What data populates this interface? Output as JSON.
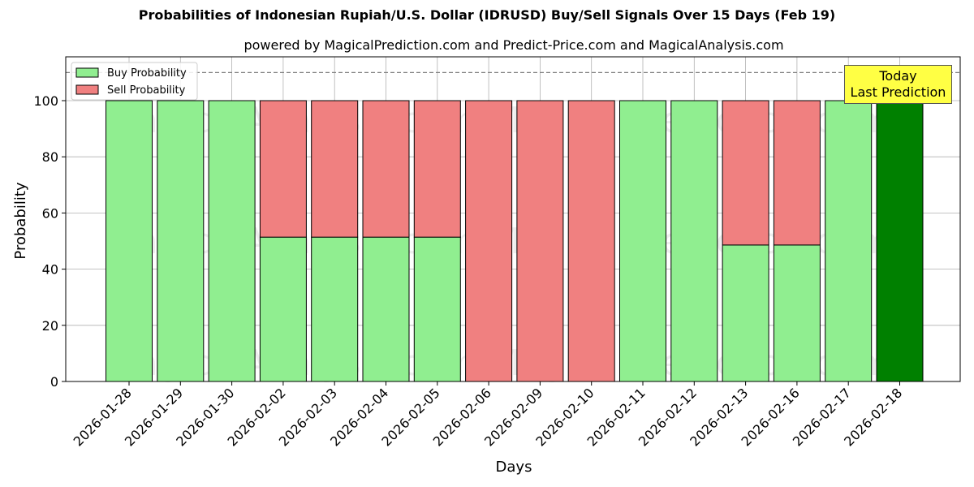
{
  "chart_data": {
    "type": "bar",
    "stacked": true,
    "title": "Probabilities of Indonesian Rupiah/U.S. Dollar (IDRUSD) Buy/Sell Signals Over 15 Days (Feb 19)",
    "subtitle": "powered by MagicalPrediction.com and Predict-Price.com and MagicalAnalysis.com",
    "xlabel": "Days",
    "ylabel": "Probability",
    "ylim": [
      0,
      115
    ],
    "yticks": [
      0,
      20,
      40,
      60,
      80,
      100
    ],
    "grid": true,
    "legend_position": "upper left",
    "categories": [
      "2026-01-28",
      "2026-01-29",
      "2026-01-30",
      "2026-02-02",
      "2026-02-03",
      "2026-02-04",
      "2026-02-05",
      "2026-02-06",
      "2026-02-09",
      "2026-02-10",
      "2026-02-11",
      "2026-02-12",
      "2026-02-13",
      "2026-02-16",
      "2026-02-17",
      "2026-02-18"
    ],
    "series": [
      {
        "name": "Buy Probability",
        "color": "#90ee90",
        "values": [
          100,
          100,
          100,
          51.4,
          51.4,
          51.4,
          51.4,
          0,
          0,
          0,
          100,
          100,
          48.6,
          48.6,
          100,
          100
        ]
      },
      {
        "name": "Sell Probability",
        "color": "#f08080",
        "values": [
          0,
          0,
          0,
          48.6,
          48.6,
          48.6,
          48.6,
          100,
          100,
          100,
          0,
          0,
          51.4,
          51.4,
          0,
          0
        ]
      }
    ],
    "highlight": {
      "index": 15,
      "color": "#008000"
    },
    "reference_line": {
      "y": 110,
      "style": "dashed",
      "color": "#808080"
    },
    "annotation": {
      "line1": "Today",
      "line2": "Last Prediction",
      "background": "#ffff44"
    },
    "watermarks": [
      "MagicalAnalysis.com",
      "MagicalPrediction.com"
    ]
  },
  "labels": {
    "title": "Probabilities of Indonesian Rupiah/U.S. Dollar (IDRUSD) Buy/Sell Signals Over 15 Days (Feb 19)",
    "subtitle": "powered by MagicalPrediction.com and Predict-Price.com and MagicalAnalysis.com",
    "xlabel": "Days",
    "ylabel": "Probability",
    "legend_buy": "Buy Probability",
    "legend_sell": "Sell Probability",
    "annot_line1": "Today",
    "annot_line2": "Last Prediction"
  }
}
